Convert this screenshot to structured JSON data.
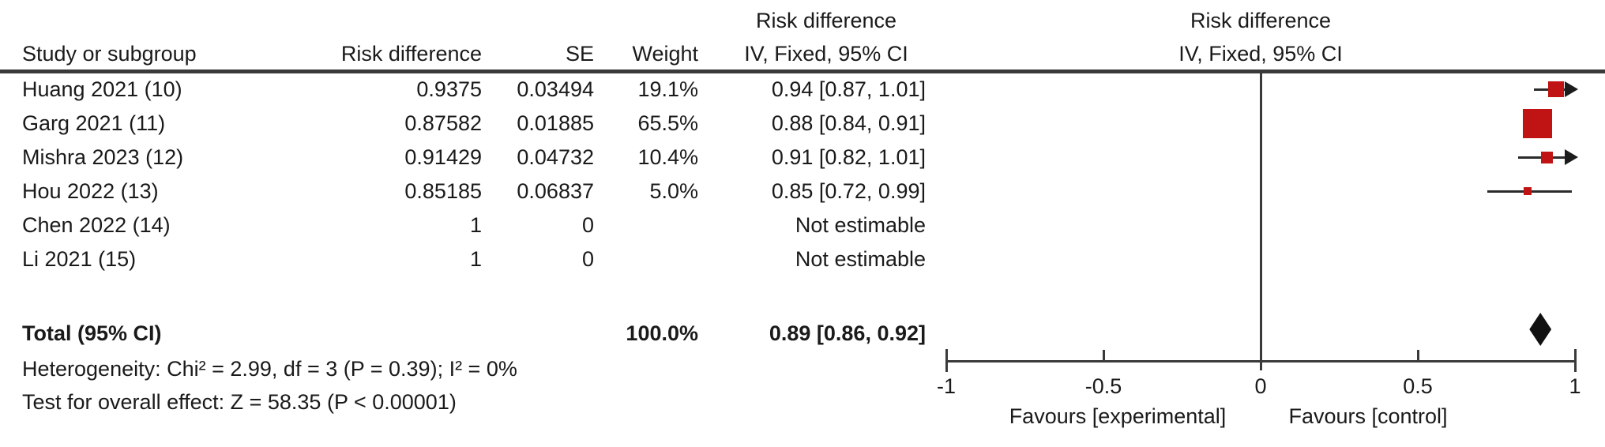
{
  "table": {
    "headers": {
      "study": "Study or subgroup",
      "risk_difference": "Risk difference",
      "se": "SE",
      "weight": "Weight",
      "ci_line1": "Risk difference",
      "ci_line2": "IV, Fixed, 95% CI"
    },
    "plot_header": {
      "line1": "Risk difference",
      "line2": "IV, Fixed, 95% CI"
    },
    "rows": [
      {
        "study": "Huang 2021 (10)",
        "rd": "0.9375",
        "se": "0.03494",
        "weight": "19.1%",
        "ci": "0.94 [0.87, 1.01]"
      },
      {
        "study": "Garg 2021 (11)",
        "rd": "0.87582",
        "se": "0.01885",
        "weight": "65.5%",
        "ci": "0.88 [0.84, 0.91]"
      },
      {
        "study": "Mishra 2023 (12)",
        "rd": "0.91429",
        "se": "0.04732",
        "weight": "10.4%",
        "ci": "0.91 [0.82, 1.01]"
      },
      {
        "study": "Hou 2022 (13)",
        "rd": "0.85185",
        "se": "0.06837",
        "weight": "5.0%",
        "ci": "0.85 [0.72, 0.99]"
      },
      {
        "study": "Chen 2022 (14)",
        "rd": "1",
        "se": "0",
        "weight": "",
        "ci": "Not estimable"
      },
      {
        "study": "Li 2021 (15)",
        "rd": "1",
        "se": "0",
        "weight": "",
        "ci": "Not estimable"
      }
    ],
    "total": {
      "label": "Total (95% CI)",
      "weight": "100.0%",
      "ci": "0.89 [0.86, 0.92]"
    },
    "heterogeneity": "Heterogeneity: Chi² = 2.99, df = 3 (P = 0.39); I² = 0%",
    "overall_effect": "Test for overall effect: Z = 58.35 (P < 0.00001)"
  },
  "axis": {
    "ticks": [
      "-1",
      "-0.5",
      "0",
      "0.5",
      "1"
    ],
    "favours_left": "Favours [experimental]",
    "favours_right": "Favours [control]"
  },
  "colors": {
    "marker_red": "#c01414",
    "line_dark": "#2b2b2b",
    "rule_gray": "#3a3a3a",
    "diamond_black": "#111111"
  },
  "chart_data": {
    "type": "forest",
    "title": "",
    "effect_measure": "Risk difference",
    "method": "IV, Fixed, 95% CI",
    "xlim": [
      -1,
      1
    ],
    "x_ticks": [
      -1,
      -0.5,
      0,
      0.5,
      1
    ],
    "favours_left": "Favours [experimental]",
    "favours_right": "Favours [control]",
    "studies": [
      {
        "name": "Huang 2021 (10)",
        "risk_difference": 0.9375,
        "se": 0.03494,
        "weight_pct": 19.1,
        "estimate": 0.94,
        "ci_low": 0.87,
        "ci_high": 1.01,
        "estimable": true
      },
      {
        "name": "Garg 2021 (11)",
        "risk_difference": 0.87582,
        "se": 0.01885,
        "weight_pct": 65.5,
        "estimate": 0.88,
        "ci_low": 0.84,
        "ci_high": 0.91,
        "estimable": true
      },
      {
        "name": "Mishra 2023 (12)",
        "risk_difference": 0.91429,
        "se": 0.04732,
        "weight_pct": 10.4,
        "estimate": 0.91,
        "ci_low": 0.82,
        "ci_high": 1.01,
        "estimable": true
      },
      {
        "name": "Hou 2022 (13)",
        "risk_difference": 0.85185,
        "se": 0.06837,
        "weight_pct": 5.0,
        "estimate": 0.85,
        "ci_low": 0.72,
        "ci_high": 0.99,
        "estimable": true
      },
      {
        "name": "Chen 2022 (14)",
        "risk_difference": 1,
        "se": 0,
        "weight_pct": null,
        "estimate": null,
        "ci_low": null,
        "ci_high": null,
        "estimable": false
      },
      {
        "name": "Li 2021 (15)",
        "risk_difference": 1,
        "se": 0,
        "weight_pct": null,
        "estimate": null,
        "ci_low": null,
        "ci_high": null,
        "estimable": false
      }
    ],
    "total": {
      "label": "Total (95% CI)",
      "weight_pct": 100.0,
      "estimate": 0.89,
      "ci_low": 0.86,
      "ci_high": 0.92
    },
    "heterogeneity": {
      "chi2": 2.99,
      "df": 3,
      "p": 0.39,
      "i2_pct": 0
    },
    "overall_effect": {
      "z": 58.35,
      "p": "< 0.00001"
    }
  }
}
